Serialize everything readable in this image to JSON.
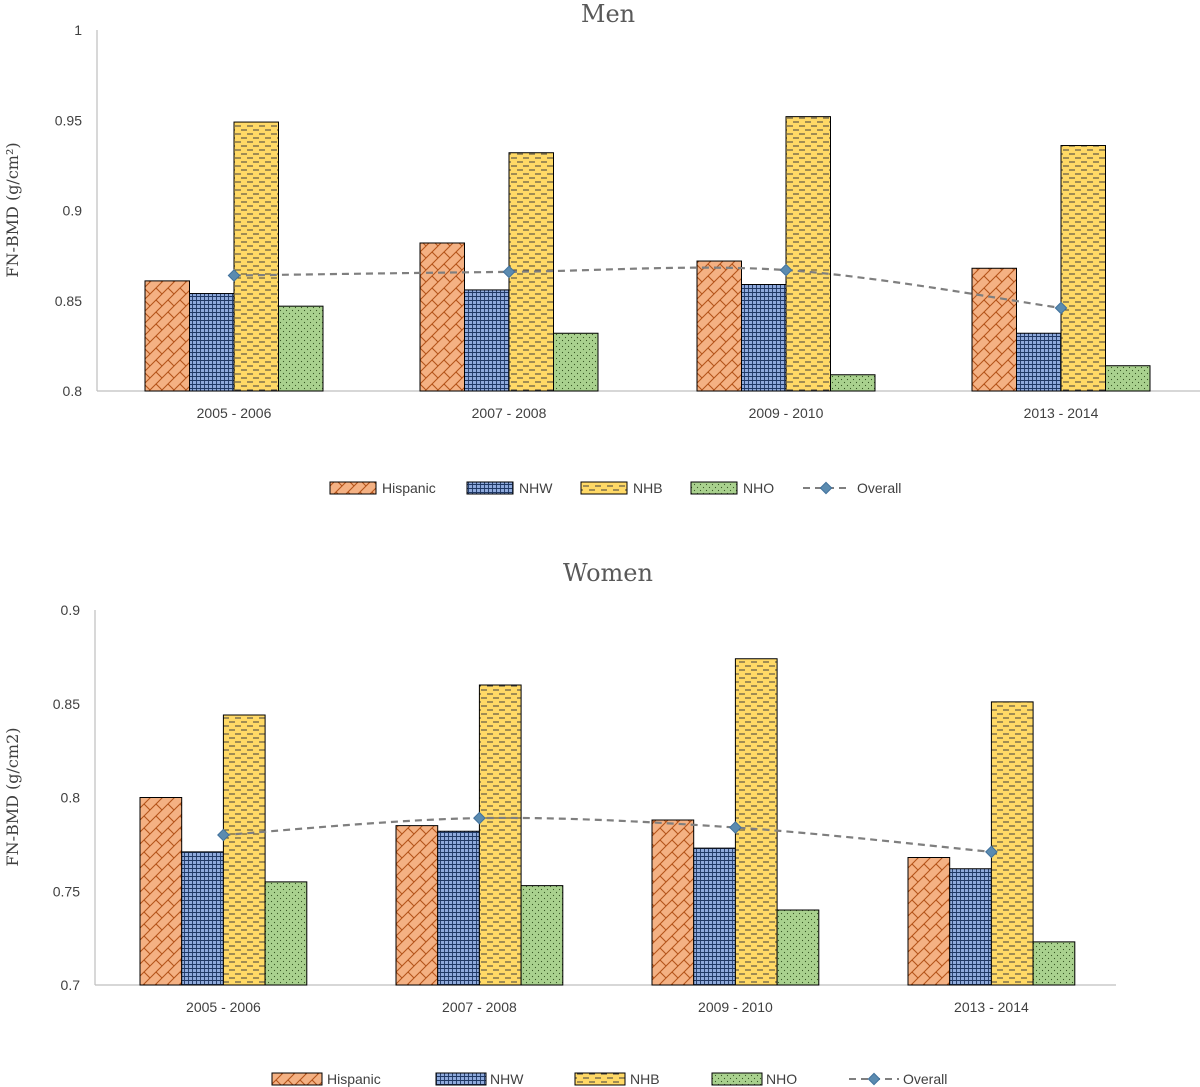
{
  "chart_data": [
    {
      "type": "bar",
      "title": "Men",
      "xlabel": "",
      "ylabel": "FN-BMD (g/cm²)",
      "ylim": [
        0.8,
        1.0
      ],
      "yticks": [
        0.8,
        0.85,
        0.9,
        0.95,
        1
      ],
      "ytick_labels": [
        "0.8",
        "0.85",
        "0.9",
        "0.95",
        "1"
      ],
      "categories": [
        "2005 - 2006",
        "2007 - 2008",
        "2009 - 2010",
        "2013 - 2014"
      ],
      "series": [
        {
          "name": "Hispanic",
          "values": [
            0.861,
            0.882,
            0.872,
            0.868
          ]
        },
        {
          "name": "NHW",
          "values": [
            0.854,
            0.856,
            0.859,
            0.832
          ]
        },
        {
          "name": "NHB",
          "values": [
            0.949,
            0.932,
            0.952,
            0.936
          ]
        },
        {
          "name": "NHO",
          "values": [
            0.847,
            0.832,
            0.809,
            0.814
          ]
        }
      ],
      "overall": {
        "name": "Overall",
        "values": [
          0.864,
          0.866,
          0.867,
          0.846
        ]
      },
      "legend_position": "bottom"
    },
    {
      "type": "bar",
      "title": "Women",
      "xlabel": "",
      "ylabel": "FN-BMD (g/cm2)",
      "ylim": [
        0.7,
        0.9
      ],
      "yticks": [
        0.7,
        0.75,
        0.8,
        0.85,
        0.9
      ],
      "ytick_labels": [
        "0.7",
        "0.75",
        "0.8",
        "0.85",
        "0.9"
      ],
      "categories": [
        "2005 - 2006",
        "2007 - 2008",
        "2009 - 2010",
        "2013 - 2014"
      ],
      "series": [
        {
          "name": "Hispanic",
          "values": [
            0.8,
            0.785,
            0.788,
            0.768
          ]
        },
        {
          "name": "NHW",
          "values": [
            0.771,
            0.782,
            0.773,
            0.762
          ]
        },
        {
          "name": "NHB",
          "values": [
            0.844,
            0.86,
            0.874,
            0.851
          ]
        },
        {
          "name": "NHO",
          "values": [
            0.755,
            0.753,
            0.74,
            0.723
          ]
        }
      ],
      "overall": {
        "name": "Overall",
        "values": [
          0.78,
          0.789,
          0.784,
          0.771
        ]
      },
      "legend_position": "bottom"
    }
  ],
  "colors": {
    "hispanic_fill": "#f4b183",
    "hispanic_pattern": "#c55a11",
    "nhw_fill": "#8faadc",
    "nhw_pattern": "#1f3864",
    "nhb_fill": "#ffd966",
    "nhb_pattern": "#7f6000",
    "nho_fill": "#a9d18e",
    "nho_pattern": "#375623",
    "overall_line": "#7f7f7f",
    "overall_marker": "#5b8bb0",
    "axis": "#bfbfbf",
    "text": "#404040"
  }
}
